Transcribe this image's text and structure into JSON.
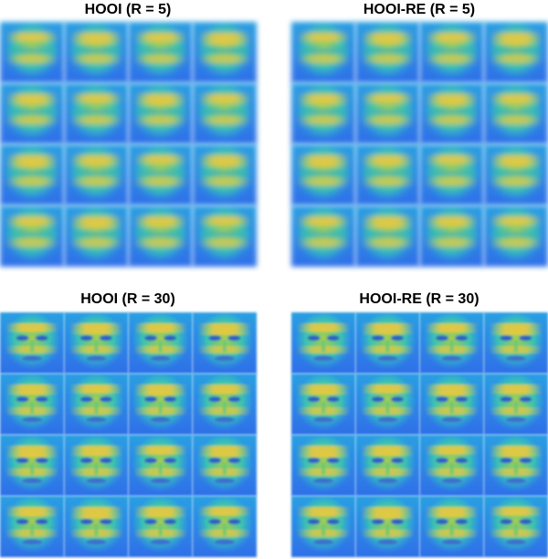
{
  "panels": [
    {
      "title": "HOOI (R = 5)"
    },
    {
      "title": "HOOI-RE (R = 5)"
    },
    {
      "title": "HOOI (R = 30)"
    },
    {
      "title": "HOOI-RE (R = 30)"
    }
  ]
}
